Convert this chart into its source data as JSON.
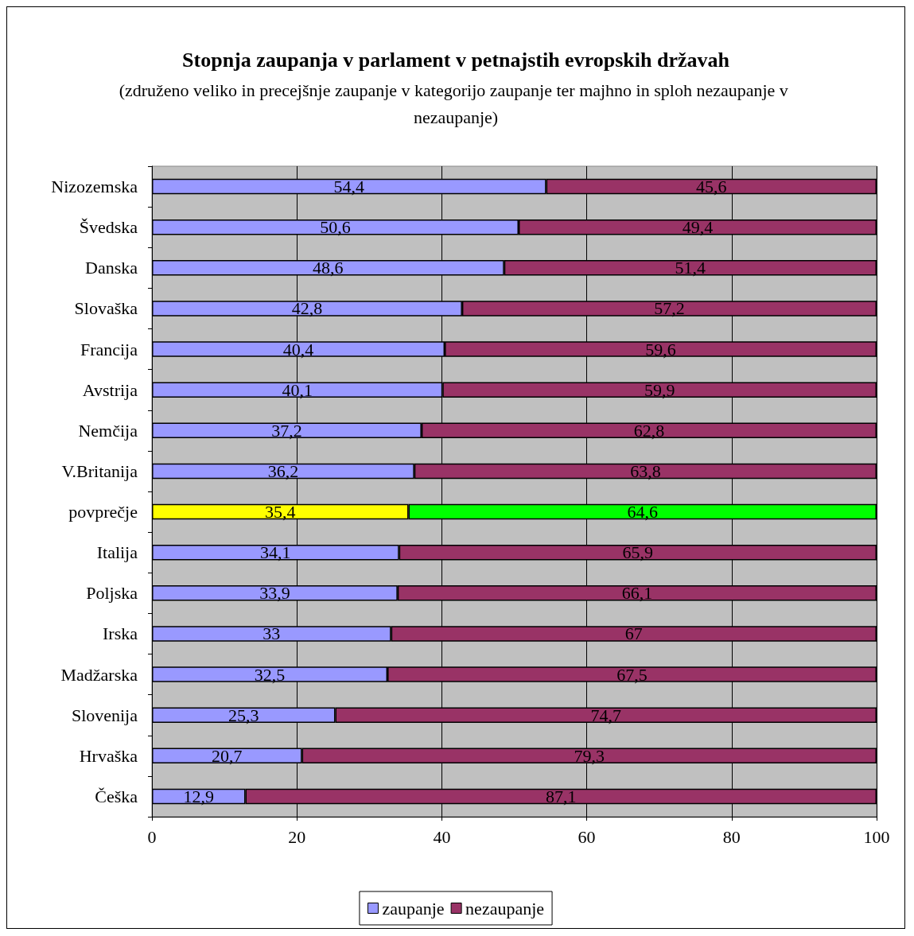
{
  "chart_data": {
    "type": "bar",
    "orientation": "horizontal",
    "stacked": true,
    "title": "Stopnja zaupanja v parlament v petnajstih evropskih državah",
    "subtitle": "(združeno veliko in precejšnje zaupanje v kategorijo zaupanje ter majhno in sploh nezaupanje v nezaupanje)",
    "categories": [
      "Nizozemska",
      "Švedska",
      "Danska",
      "Slovaška",
      "Francija",
      "Avstrija",
      "Nemčija",
      "V.Britanija",
      "povprečje",
      "Italija",
      "Poljska",
      "Irska",
      "Madžarska",
      "Slovenija",
      "Hrvaška",
      "Češka"
    ],
    "series": [
      {
        "name": "zaupanje",
        "color": "#9999ff",
        "colors": [
          "#9999ff",
          "#9999ff",
          "#9999ff",
          "#9999ff",
          "#9999ff",
          "#9999ff",
          "#9999ff",
          "#9999ff",
          "#ffff00",
          "#9999ff",
          "#9999ff",
          "#9999ff",
          "#9999ff",
          "#9999ff",
          "#9999ff",
          "#9999ff"
        ],
        "values": [
          54.4,
          50.6,
          48.6,
          42.8,
          40.4,
          40.1,
          37.2,
          36.2,
          35.4,
          34.1,
          33.9,
          33,
          32.5,
          25.3,
          20.7,
          12.9
        ],
        "value_labels": [
          "54,4",
          "50,6",
          "48,6",
          "42,8",
          "40,4",
          "40,1",
          "37,2",
          "36,2",
          "35,4",
          "34,1",
          "33,9",
          "33",
          "32,5",
          "25,3",
          "20,7",
          "12,9"
        ]
      },
      {
        "name": "nezaupanje",
        "color": "#993366",
        "colors": [
          "#993366",
          "#993366",
          "#993366",
          "#993366",
          "#993366",
          "#993366",
          "#993366",
          "#993366",
          "#00ff00",
          "#993366",
          "#993366",
          "#993366",
          "#993366",
          "#993366",
          "#993366",
          "#993366"
        ],
        "values": [
          45.6,
          49.4,
          51.4,
          57.2,
          59.6,
          59.9,
          62.8,
          63.8,
          64.6,
          65.9,
          66.1,
          67,
          67.5,
          74.7,
          79.3,
          87.1
        ],
        "value_labels": [
          "45,6",
          "49,4",
          "51,4",
          "57,2",
          "59,6",
          "59,9",
          "62,8",
          "63,8",
          "64,6",
          "65,9",
          "66,1",
          "67",
          "67,5",
          "74,7",
          "79,3",
          "87,1"
        ]
      }
    ],
    "xlim": [
      0,
      100
    ],
    "xticks": [
      0,
      20,
      40,
      60,
      80,
      100
    ],
    "grid": "x",
    "legend": "bottom"
  }
}
